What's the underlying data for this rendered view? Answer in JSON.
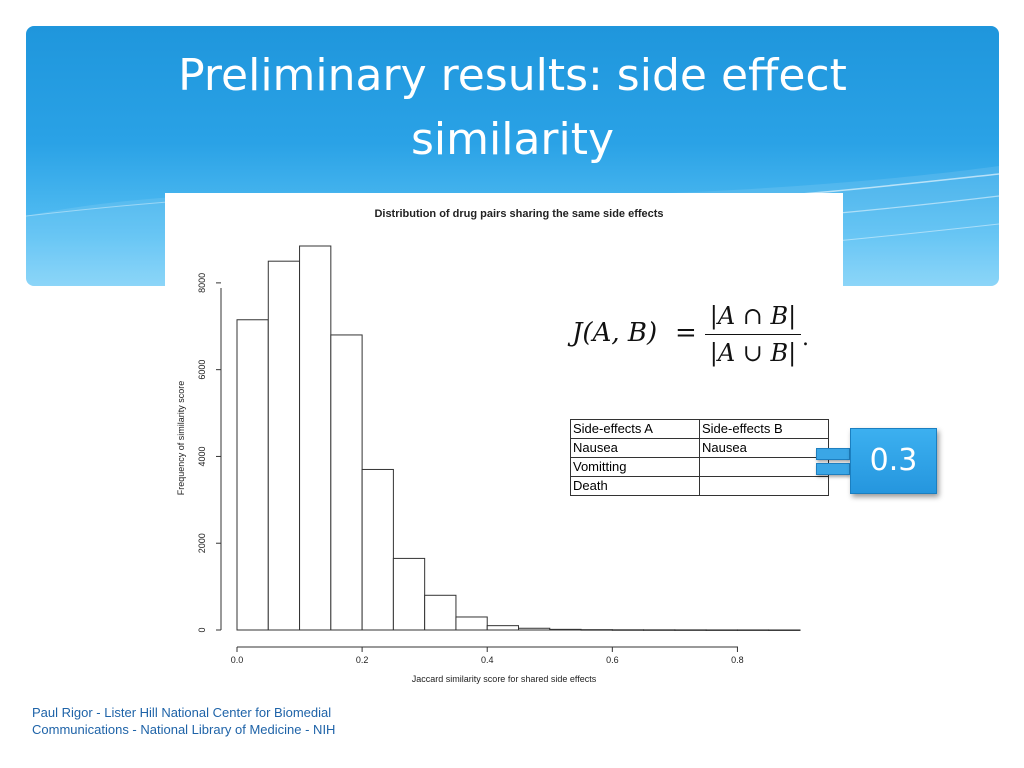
{
  "slide": {
    "title_line1": "Preliminary results: side effect",
    "title_line2": "similarity",
    "footer_line1": "Paul Rigor - Lister Hill National Center for Biomedial",
    "footer_line2": "Communications - National Library of Medicine - NIH",
    "accent_color": "#2aa2e6"
  },
  "chart_data": {
    "type": "bar",
    "title": "Distribution of drug pairs sharing the same side effects",
    "xlabel": "Jaccard similarity score for shared side effects",
    "ylabel": "Frequency of similarity score",
    "bin_edges": [
      0.0,
      0.05,
      0.1,
      0.15,
      0.2,
      0.25,
      0.3,
      0.35,
      0.4,
      0.45,
      0.5,
      0.55,
      0.6,
      0.65,
      0.7,
      0.75,
      0.8,
      0.85,
      0.9
    ],
    "values": [
      7150,
      8500,
      8850,
      6800,
      3700,
      1650,
      800,
      300,
      100,
      40,
      15,
      8,
      5,
      4,
      3,
      2,
      2,
      1
    ],
    "xlim": [
      0.0,
      0.9
    ],
    "ylim": [
      0,
      8850
    ],
    "x_ticks": [
      "0.0",
      "0.2",
      "0.4",
      "0.6",
      "0.8"
    ],
    "y_ticks": [
      "0",
      "2000",
      "4000",
      "6000",
      "8000"
    ],
    "grid": false,
    "bar_color": "#ffffff"
  },
  "formula": {
    "lhs": "J(A, B)",
    "equals": "=",
    "numerator": "|A ∩ B|",
    "denominator": "|A ∪ B|",
    "period": "."
  },
  "table": {
    "rows": [
      [
        "Side-effects A",
        "Side-effects B"
      ],
      [
        "Nausea",
        "Nausea"
      ],
      [
        "Vomitting",
        ""
      ],
      [
        "Death",
        ""
      ]
    ]
  },
  "result": {
    "value": "0.3"
  }
}
